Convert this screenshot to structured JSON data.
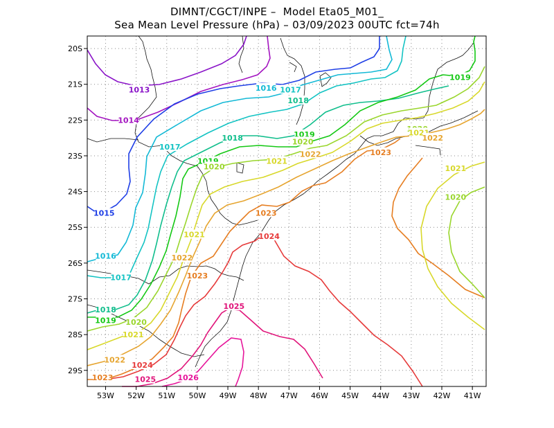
{
  "header": {
    "line1": "DIMNT/CGCT/INPE –  Model Eta05_M01_",
    "line2": "Sea Mean Level Pressure (hPa) – 03/09/2023 00UTC fct=74h"
  },
  "axes": {
    "lat_labels": [
      "20S",
      "21S",
      "22S",
      "23S",
      "24S",
      "25S",
      "26S",
      "27S",
      "28S",
      "29S"
    ],
    "lon_labels": [
      "53W",
      "52W",
      "51W",
      "50W",
      "49W",
      "48W",
      "47W",
      "46W",
      "45W",
      "44W",
      "43W",
      "42W",
      "41W"
    ]
  },
  "colors": {
    "1013": "#8a14c8",
    "1014": "#a314c0",
    "1015": "#1f3fe6",
    "1016": "#13b9d6",
    "1017": "#13c3c3",
    "1018": "#10be8c",
    "1019": "#14c814",
    "1020": "#9ad62d",
    "1021": "#d8d82a",
    "1022": "#e6a530",
    "1023": "#e67e22",
    "1024": "#e63b3b",
    "1025": "#e0147a",
    "1026": "#e6149a"
  },
  "contour_labels": [
    {
      "text": "1013",
      "lon": -51.9,
      "lat": -21.15
    },
    {
      "text": "1014",
      "lon": -52.25,
      "lat": -22.0
    },
    {
      "text": "1015",
      "lon": -53.05,
      "lat": -24.6
    },
    {
      "text": "1016",
      "lon": -53.0,
      "lat": -25.8
    },
    {
      "text": "1017",
      "lon": -52.5,
      "lat": -26.4
    },
    {
      "text": "1018",
      "lon": -53.0,
      "lat": -27.3
    },
    {
      "text": "1019",
      "lon": -53.0,
      "lat": -27.6
    },
    {
      "text": "1020",
      "lon": -52.0,
      "lat": -27.65
    },
    {
      "text": "1021",
      "lon": -52.1,
      "lat": -28.0
    },
    {
      "text": "1022",
      "lon": -52.7,
      "lat": -28.7
    },
    {
      "text": "1023",
      "lon": -53.1,
      "lat": -29.2
    },
    {
      "text": "1024",
      "lon": -51.8,
      "lat": -28.85
    },
    {
      "text": "1025",
      "lon": -51.7,
      "lat": -29.25
    },
    {
      "text": "1026",
      "lon": -50.3,
      "lat": -29.2
    },
    {
      "text": "1017",
      "lon": -50.9,
      "lat": -22.75
    },
    {
      "text": "1018",
      "lon": -48.85,
      "lat": -22.5
    },
    {
      "text": "1019",
      "lon": -49.65,
      "lat": -23.15
    },
    {
      "text": "1020",
      "lon": -49.45,
      "lat": -23.3
    },
    {
      "text": "1021",
      "lon": -50.1,
      "lat": -25.2
    },
    {
      "text": "1022",
      "lon": -50.5,
      "lat": -25.85
    },
    {
      "text": "1023",
      "lon": -50.0,
      "lat": -26.35
    },
    {
      "text": "1024",
      "lon": -47.65,
      "lat": -25.25
    },
    {
      "text": "1025",
      "lon": -48.8,
      "lat": -27.2
    },
    {
      "text": "1023",
      "lon": -47.75,
      "lat": -24.6
    },
    {
      "text": "1016",
      "lon": -47.75,
      "lat": -21.1
    },
    {
      "text": "1017",
      "lon": -46.95,
      "lat": -21.15
    },
    {
      "text": "1018",
      "lon": -46.7,
      "lat": -21.45
    },
    {
      "text": "1019",
      "lon": -46.5,
      "lat": -22.4
    },
    {
      "text": "1020",
      "lon": -46.55,
      "lat": -22.6
    },
    {
      "text": "1021",
      "lon": -47.4,
      "lat": -23.15
    },
    {
      "text": "1022",
      "lon": -46.3,
      "lat": -22.95
    },
    {
      "text": "1023",
      "lon": -44.0,
      "lat": -22.9
    },
    {
      "text": "1019",
      "lon": -41.4,
      "lat": -20.8
    },
    {
      "text": "1020",
      "lon": -42.8,
      "lat": -22.25
    },
    {
      "text": "1021",
      "lon": -42.75,
      "lat": -22.35
    },
    {
      "text": "1022",
      "lon": -42.3,
      "lat": -22.5
    },
    {
      "text": "1021",
      "lon": -41.55,
      "lat": -23.35
    },
    {
      "text": "1020",
      "lon": -41.55,
      "lat": -24.15
    }
  ]
}
